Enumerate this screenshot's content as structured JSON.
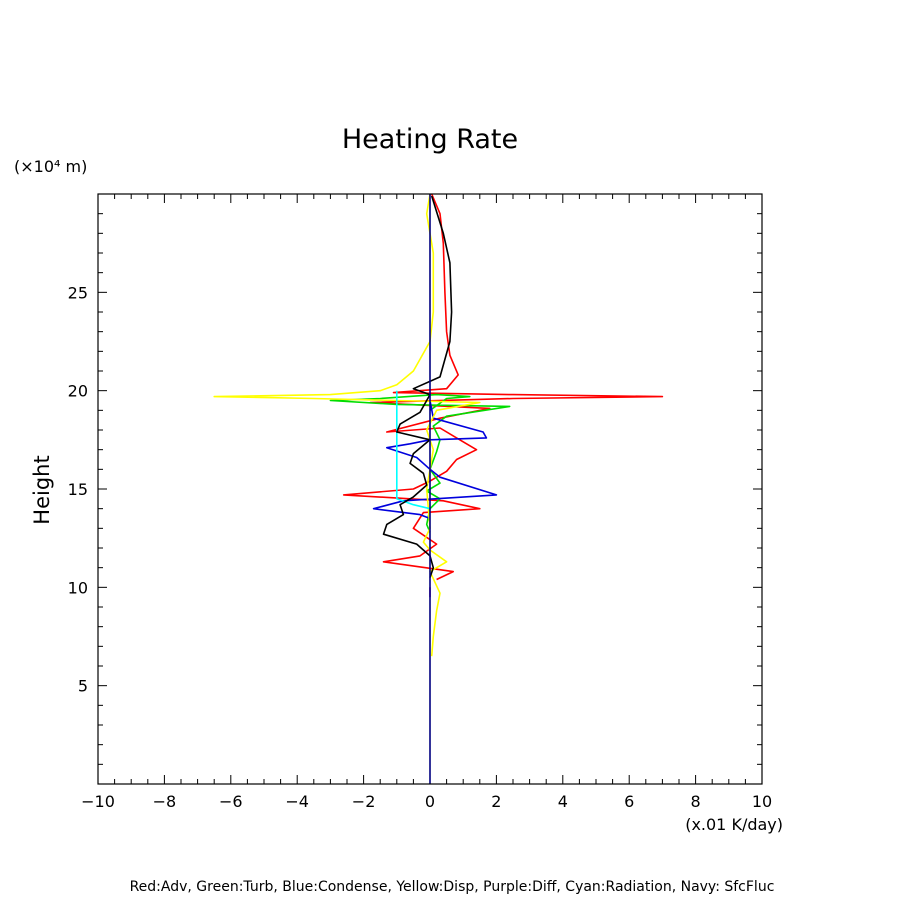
{
  "chart_data": {
    "type": "line",
    "title": "Heating Rate",
    "ylabel": "Height",
    "y_unit": "(×10⁴ m)",
    "x_unit": "(x.01 K/day)",
    "xlim": [
      -10,
      10
    ],
    "ylim": [
      0,
      30
    ],
    "x_ticks": [
      -10,
      -8,
      -6,
      -4,
      -2,
      0,
      2,
      4,
      6,
      8,
      10
    ],
    "y_ticks": [
      5,
      10,
      15,
      20,
      25
    ],
    "legend_text": "Red:Adv, Green:Turb, Blue:Condense, Yellow:Disp, Purple:Diff, Cyan:Radiation, Navy: SfcFluc",
    "grid": false,
    "series": [
      {
        "color": "#ff0000",
        "points": [
          [
            0.05,
            30
          ],
          [
            0.3,
            29
          ],
          [
            0.4,
            27.5
          ],
          [
            0.45,
            25
          ],
          [
            0.5,
            23
          ],
          [
            0.6,
            21.8
          ],
          [
            0.85,
            20.8
          ],
          [
            0.5,
            20.1
          ],
          [
            -1.1,
            19.9
          ],
          [
            2.5,
            19.8
          ],
          [
            7.0,
            19.7
          ],
          [
            2.5,
            19.6
          ],
          [
            -1.8,
            19.4
          ],
          [
            1.8,
            19.1
          ],
          [
            0.3,
            18.6
          ],
          [
            -1.3,
            17.9
          ],
          [
            0.3,
            18.1
          ],
          [
            0.8,
            17.6
          ],
          [
            1.4,
            17.0
          ],
          [
            0.8,
            16.5
          ],
          [
            0.5,
            15.9
          ],
          [
            0.0,
            15.4
          ],
          [
            -0.5,
            15.0
          ],
          [
            -2.6,
            14.7
          ],
          [
            0.4,
            14.4
          ],
          [
            1.5,
            14.0
          ],
          [
            -0.2,
            13.8
          ],
          [
            -0.5,
            13.0
          ],
          [
            0.2,
            12.2
          ],
          [
            -0.3,
            11.6
          ],
          [
            -1.4,
            11.3
          ],
          [
            0.7,
            10.8
          ],
          [
            0.2,
            10.4
          ]
        ]
      },
      {
        "color": "#00dd00",
        "points": [
          [
            0,
            19.0
          ],
          [
            0.5,
            19.6
          ],
          [
            1.2,
            19.7
          ],
          [
            0.2,
            19.8
          ],
          [
            -1.5,
            19.6
          ],
          [
            -3.0,
            19.5
          ],
          [
            -1.0,
            19.3
          ],
          [
            2.4,
            19.2
          ],
          [
            0.5,
            18.7
          ],
          [
            0.1,
            18.2
          ],
          [
            0.3,
            17.5
          ],
          [
            0.2,
            16.9
          ],
          [
            0.0,
            16.0
          ],
          [
            0.3,
            15.3
          ],
          [
            -0.1,
            14.9
          ],
          [
            0.3,
            14.5
          ],
          [
            0.0,
            14.0
          ],
          [
            -0.1,
            13.2
          ],
          [
            0.0,
            12.8
          ]
        ]
      },
      {
        "color": "#0000dd",
        "points": [
          [
            0,
            19.5
          ],
          [
            0.1,
            18.6
          ],
          [
            1.6,
            17.9
          ],
          [
            1.7,
            17.6
          ],
          [
            0,
            17.5
          ],
          [
            -0.6,
            17.3
          ],
          [
            -1.3,
            17.1
          ],
          [
            -0.4,
            16.6
          ],
          [
            0,
            16.0
          ],
          [
            0.3,
            15.6
          ],
          [
            2.0,
            14.7
          ],
          [
            -0.8,
            14.4
          ],
          [
            -1.7,
            14.0
          ],
          [
            -0.3,
            13.7
          ],
          [
            0,
            13.5
          ]
        ]
      },
      {
        "color": "#ffff00",
        "points": [
          [
            0.0,
            30
          ],
          [
            -0.1,
            29
          ],
          [
            0.1,
            27
          ],
          [
            0.1,
            24
          ],
          [
            0.0,
            22.5
          ],
          [
            -0.5,
            21.0
          ],
          [
            -1.0,
            20.3
          ],
          [
            -1.5,
            20.0
          ],
          [
            -3.0,
            19.8
          ],
          [
            -6.5,
            19.7
          ],
          [
            -3.5,
            19.6
          ],
          [
            -1.0,
            19.5
          ],
          [
            1.5,
            19.4
          ],
          [
            0.2,
            19.0
          ],
          [
            -0.1,
            18.0
          ],
          [
            0.1,
            17.0
          ],
          [
            0.0,
            16.0
          ],
          [
            -0.1,
            15.0
          ],
          [
            0.0,
            13.0
          ],
          [
            -0.2,
            12.3
          ],
          [
            0.0,
            11.9
          ],
          [
            0.5,
            11.3
          ],
          [
            0.0,
            10.8
          ],
          [
            0.3,
            9.7
          ],
          [
            0.2,
            8.8
          ],
          [
            0.1,
            7.5
          ],
          [
            0.05,
            6.5
          ]
        ]
      },
      {
        "color": "#aa00aa",
        "points": [
          [
            0,
            10.0
          ],
          [
            0,
            9.5
          ]
        ]
      },
      {
        "color": "#00ffff",
        "points": [
          [
            -1.0,
            20.0
          ],
          [
            -1.0,
            14.5
          ],
          [
            -0.5,
            14.2
          ],
          [
            0,
            14.0
          ]
        ]
      },
      {
        "color": "#000000",
        "points": [
          [
            0.05,
            29.9
          ],
          [
            0.4,
            28.0
          ],
          [
            0.6,
            26.5
          ],
          [
            0.65,
            24.0
          ],
          [
            0.6,
            22.5
          ],
          [
            0.3,
            20.7
          ],
          [
            -0.5,
            20.1
          ],
          [
            0.0,
            19.8
          ],
          [
            -0.3,
            18.9
          ],
          [
            -0.9,
            18.3
          ],
          [
            -1.0,
            17.9
          ],
          [
            0.0,
            17.5
          ],
          [
            -0.5,
            16.8
          ],
          [
            -0.6,
            16.3
          ],
          [
            -0.2,
            15.8
          ],
          [
            -0.1,
            15.2
          ],
          [
            -0.5,
            14.6
          ],
          [
            -0.9,
            14.2
          ],
          [
            -0.8,
            13.7
          ],
          [
            -1.3,
            13.2
          ],
          [
            -1.4,
            12.7
          ],
          [
            -0.4,
            12.2
          ],
          [
            0.0,
            11.6
          ],
          [
            0.1,
            11.0
          ],
          [
            0.0,
            10.5
          ]
        ]
      },
      {
        "color": "#000080",
        "points": [
          [
            0,
            0
          ],
          [
            0,
            30
          ]
        ]
      }
    ]
  }
}
